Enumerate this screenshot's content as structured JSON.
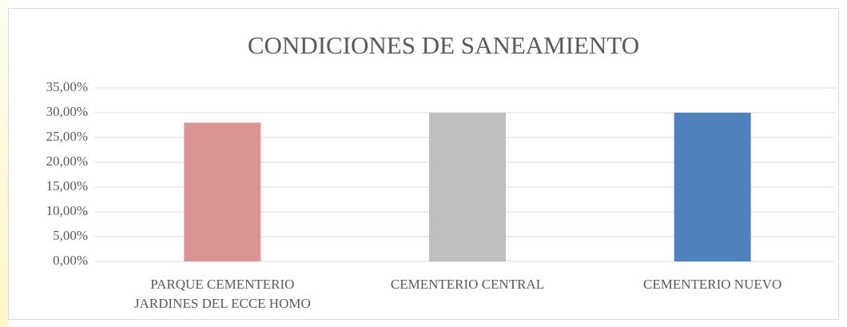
{
  "chart_data": {
    "type": "bar",
    "title": "CONDICIONES DE SANEAMIENTO",
    "categories": [
      "PARQUE CEMENTERIO JARDINES DEL ECCE HOMO",
      "CEMENTERIO CENTRAL",
      "CEMENTERIO NUEVO"
    ],
    "values": [
      28,
      30,
      30
    ],
    "colors": [
      "#d99594",
      "#bfbfbf",
      "#4f81bd"
    ],
    "ylim": [
      0,
      35
    ],
    "yticks": [
      {
        "value": 0,
        "label": "0,00%"
      },
      {
        "value": 5,
        "label": "5,00%"
      },
      {
        "value": 10,
        "label": "10,00%"
      },
      {
        "value": 15,
        "label": "15,00%"
      },
      {
        "value": 20,
        "label": "20,00%"
      },
      {
        "value": 25,
        "label": "25,00%"
      },
      {
        "value": 30,
        "label": "30,00%"
      },
      {
        "value": 35,
        "label": "35,00%"
      }
    ],
    "grid": true
  }
}
